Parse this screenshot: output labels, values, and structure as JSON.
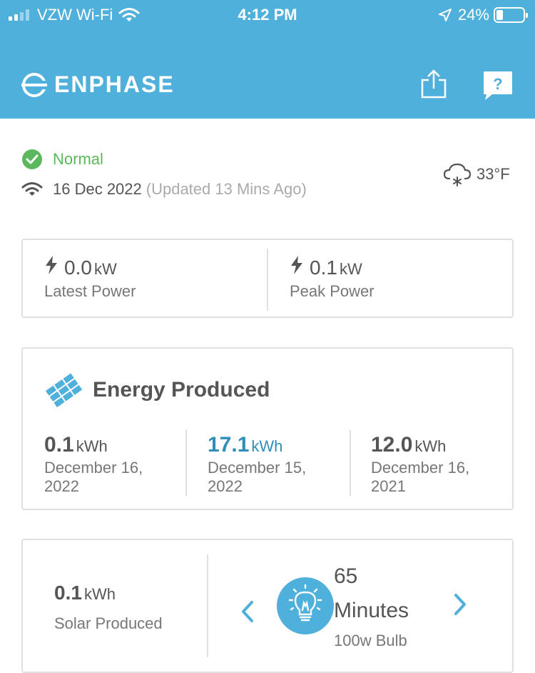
{
  "status_bar": {
    "carrier": "VZW Wi-Fi",
    "time": "4:12 PM",
    "battery": "24%"
  },
  "header": {
    "logo_text": "ENPHASE",
    "share_icon": "share-icon",
    "help_icon": "help-icon"
  },
  "system_status": {
    "status": "Normal",
    "date": "16 Dec 2022",
    "updated": "(Updated 13 Mins Ago)",
    "temperature": "33°F",
    "weather_icon": "cloud-snow-icon"
  },
  "power": {
    "latest": {
      "value": "0.0",
      "unit": "kW",
      "label": "Latest Power"
    },
    "peak": {
      "value": "0.1",
      "unit": "kW",
      "label": "Peak Power"
    }
  },
  "energy": {
    "title": "Energy Produced",
    "items": [
      {
        "value": "0.1",
        "unit": "kWh",
        "date": "December 16, 2022"
      },
      {
        "value": "17.1",
        "unit": "kWh",
        "date": "December 15, 2022"
      },
      {
        "value": "12.0",
        "unit": "kWh",
        "date": "December 16, 2021"
      }
    ],
    "accent_color": "#2f8fb8"
  },
  "equivalent": {
    "solar_value": "0.1",
    "solar_unit": "kWh",
    "solar_label": "Solar Produced",
    "count": "65",
    "unit": "Minutes",
    "item": "100w Bulb"
  },
  "colors": {
    "header_bg": "#4fb0dc",
    "status_ok": "#5cb85c"
  }
}
